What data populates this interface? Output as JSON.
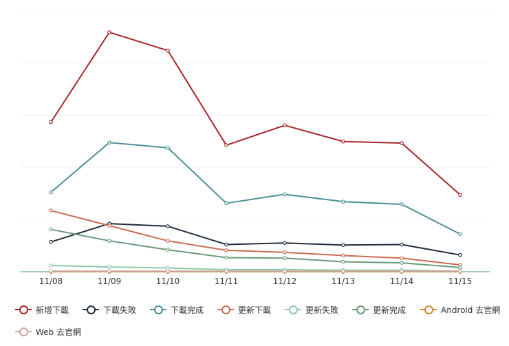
{
  "chart_data": {
    "type": "line",
    "categories": [
      "11/08",
      "11/09",
      "11/10",
      "11/11",
      "11/12",
      "11/13",
      "11/14",
      "11/15"
    ],
    "ylim": [
      0,
      500
    ],
    "grid": true,
    "legend_position": "bottom-left",
    "series": [
      {
        "name": "新增下載",
        "color": "#a8262a",
        "values": [
          286,
          458,
          423,
          242,
          280,
          249,
          246,
          147
        ]
      },
      {
        "name": "下載失敗",
        "color": "#1f2d3d",
        "values": [
          57,
          92,
          87,
          52,
          55,
          51,
          52,
          32
        ]
      },
      {
        "name": "下載完成",
        "color": "#4d8f99",
        "values": [
          152,
          247,
          237,
          131,
          148,
          134,
          129,
          72
        ]
      },
      {
        "name": "更新下載",
        "color": "#cc6b52",
        "values": [
          117,
          88,
          59,
          41,
          37,
          31,
          26,
          13
        ]
      },
      {
        "name": "更新失敗",
        "color": "#8cc9a8",
        "values": [
          12,
          9,
          7,
          4,
          4,
          3,
          3,
          1
        ]
      },
      {
        "name": "更新完成",
        "color": "#6a9a7a",
        "values": [
          81,
          59,
          42,
          27,
          26,
          19,
          17,
          8
        ]
      },
      {
        "name": "Android 去官網",
        "color": "#d18a2e",
        "values": [
          0,
          0,
          0,
          0,
          0,
          0,
          0,
          0
        ]
      },
      {
        "name": "Web 去官網",
        "color": "#c9a7a0",
        "values": [
          1,
          1,
          1,
          1,
          1,
          1,
          1,
          1
        ]
      }
    ]
  }
}
